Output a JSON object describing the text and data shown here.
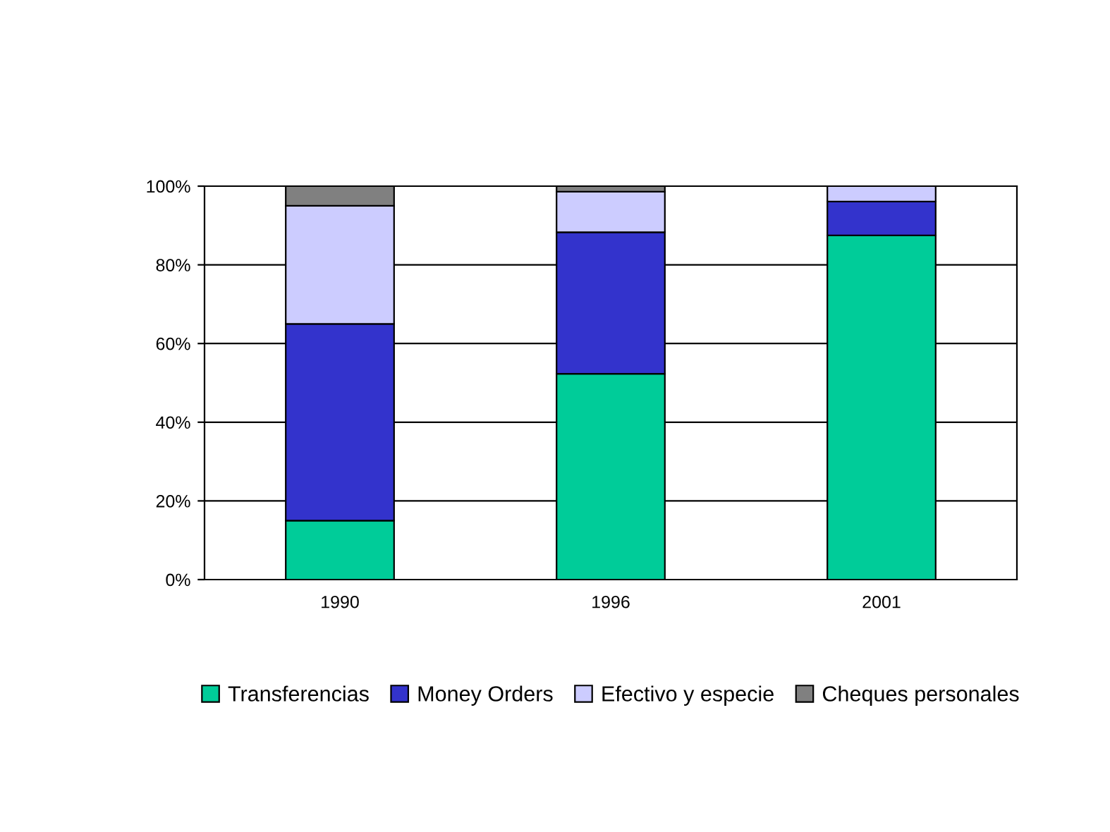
{
  "chart_data": {
    "type": "bar",
    "stacked": true,
    "categories": [
      "1990",
      "1996",
      "2001"
    ],
    "series": [
      {
        "name": "Transferencias",
        "color": "#00cc99",
        "values": [
          15,
          52.3,
          87.5
        ]
      },
      {
        "name": "Money Orders",
        "color": "#3333cc",
        "values": [
          50,
          36,
          8.6
        ]
      },
      {
        "name": "Efectivo y especie",
        "color": "#ccccff",
        "values": [
          30,
          10.3,
          3.9
        ]
      },
      {
        "name": "Cheques personales",
        "color": "#808080",
        "values": [
          5,
          1.4,
          null
        ]
      }
    ],
    "ylim": [
      0,
      100
    ],
    "yticks": [
      {
        "value": 0,
        "label": "0%"
      },
      {
        "value": 20,
        "label": "20%"
      },
      {
        "value": 40,
        "label": "40%"
      },
      {
        "value": 60,
        "label": "60%"
      },
      {
        "value": 80,
        "label": "80%"
      },
      {
        "value": 100,
        "label": "100%"
      }
    ],
    "grid": "y",
    "legend": "bottom"
  }
}
